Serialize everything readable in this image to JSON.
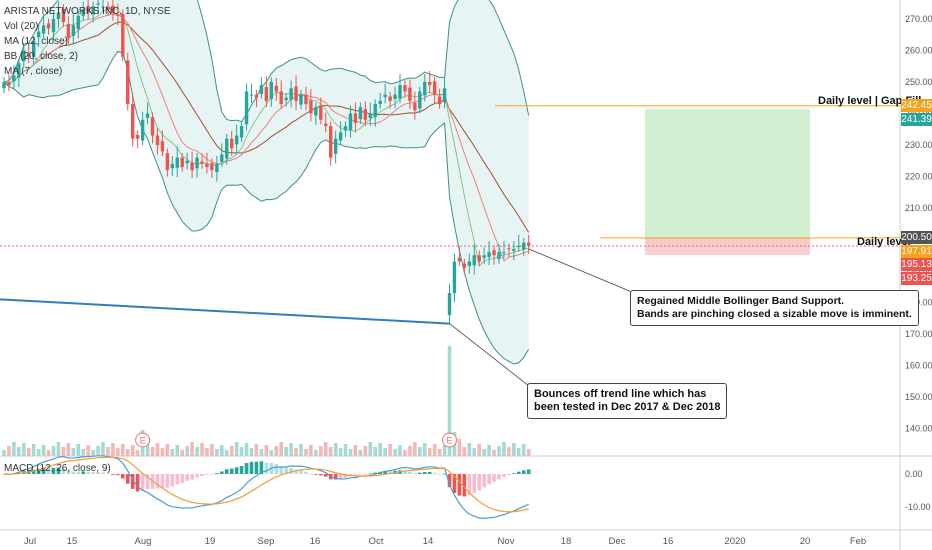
{
  "chart_data": {
    "type": "candlestick",
    "legend": [
      "ARISTA NETWORKS INC, 1D, NYSE",
      "Vol (20)",
      "MA (12, close)",
      "BB (20, close, 2)",
      "MA (7, close)"
    ],
    "macd_label": "MACD (12, 26, close, 9)",
    "y_axis": {
      "ticks": [
        "270.00",
        "260.00",
        "250.00",
        "240.00",
        "230.00",
        "220.00",
        "210.00",
        "200.00",
        "190.00",
        "180.00",
        "170.00",
        "160.00",
        "150.00",
        "140.00"
      ],
      "range": [
        136,
        276
      ]
    },
    "macd_axis": {
      "ticks": [
        "0.00",
        "-10.00"
      ],
      "range": [
        -15,
        5
      ]
    },
    "x_axis": {
      "ticks": [
        "Jul",
        "15",
        "Aug",
        "19",
        "Sep",
        "16",
        "Oct",
        "14",
        "Nov",
        "18",
        "Dec",
        "16",
        "2020",
        "20",
        "Feb"
      ]
    },
    "price_tags": [
      {
        "label": "242.45",
        "value": 242.45,
        "color": "#f7a21b"
      },
      {
        "label": "241.39",
        "value": 241.39,
        "color": "#26a69a"
      },
      {
        "label": "200.50",
        "value": 200.5,
        "color": "#555555"
      },
      {
        "label": "197.91",
        "value": 197.91,
        "color": "#f7a21b"
      },
      {
        "label": "195.13",
        "value": 195.13,
        "color": "#ef5350"
      },
      {
        "label": "193.25",
        "value": 193.25,
        "color": "#ef5350"
      }
    ],
    "levels": [
      {
        "label": "Daily level | Gap Fill",
        "value": 242.45
      },
      {
        "label": "Daily level",
        "value": 200.5
      }
    ],
    "position": {
      "entry": 197.91,
      "target": 241.39,
      "stop": 195.13
    },
    "annotations": [
      {
        "lines": [
          "Regained Middle Bollinger Band Support.",
          "Bands are pinching closed a sizable move is imminent."
        ]
      },
      {
        "lines": [
          "Bounces off trend line which has",
          "been tested in Dec 2017 & Dec 2018"
        ]
      }
    ],
    "earnings_marker": "E",
    "close_series": [
      250,
      249,
      252,
      256,
      260,
      258,
      263,
      266,
      268,
      267,
      270,
      272,
      269,
      264,
      268,
      271,
      273,
      272,
      274,
      275,
      274,
      273,
      272,
      271,
      258,
      243,
      232,
      232,
      238,
      240,
      233,
      230,
      228,
      222,
      224,
      226,
      223,
      225,
      222,
      226,
      224,
      223,
      222,
      224,
      227,
      232,
      229,
      233,
      236,
      247,
      246,
      245,
      249,
      244,
      250,
      247,
      243,
      245,
      248,
      244,
      246,
      243,
      240,
      242,
      238,
      236,
      226,
      232,
      234,
      236,
      240,
      237,
      242,
      238,
      240,
      243,
      244,
      246,
      244,
      246,
      249,
      247,
      244,
      241,
      247,
      250,
      249,
      246,
      243,
      248,
      183,
      193,
      193,
      191,
      193,
      195,
      193,
      195,
      196,
      195,
      196,
      196,
      197,
      197,
      198,
      199,
      198
    ]
  }
}
